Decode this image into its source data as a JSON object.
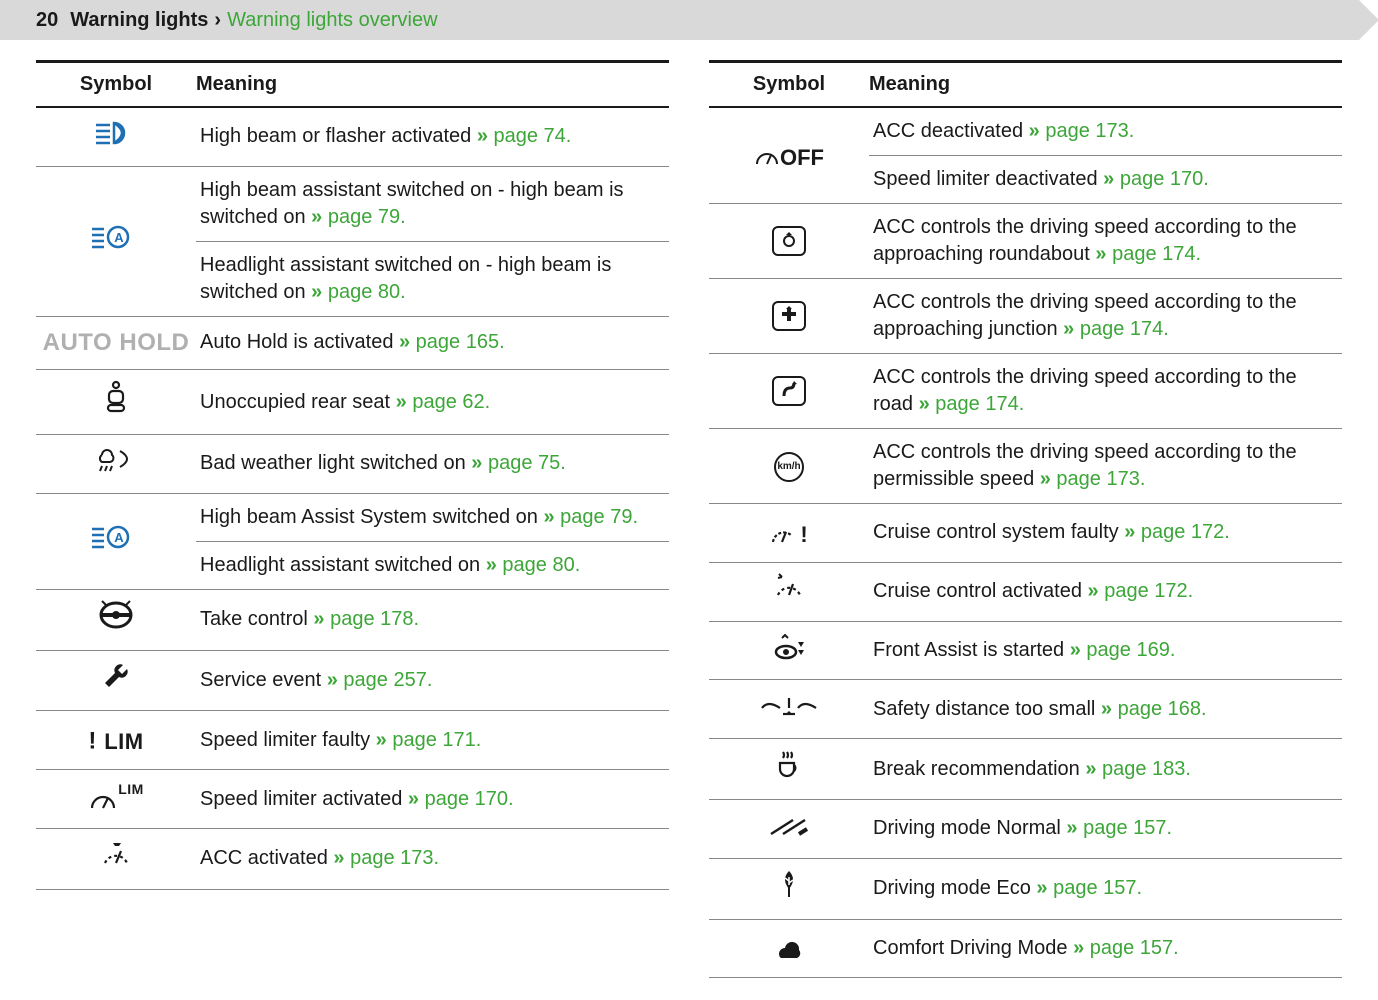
{
  "header": {
    "page_number": "20",
    "crumb_main": "Warning lights",
    "crumb_sep": "›",
    "crumb_sub": "Warning lights overview"
  },
  "columns": {
    "symbol_header": "Symbol",
    "meaning_header": "Meaning"
  },
  "colors": {
    "link": "#3da639",
    "text": "#1a1a1a",
    "header_bg": "#d9d9d9",
    "icon_blue": "#1f6fb5",
    "autohold_grey": "#b0b0b0"
  },
  "left": [
    {
      "icon": "highbeam",
      "texts": [
        {
          "t": "High beam or flasher activated ",
          "page": "page 74."
        }
      ]
    },
    {
      "icon": "highbeam-a",
      "texts": [
        {
          "t": "High beam assistant switched on - high beam is switched on ",
          "page": "page 79."
        },
        {
          "t": "Headlight assistant switched on - high beam is switched on ",
          "page": "page 80."
        }
      ]
    },
    {
      "icon": "autohold",
      "texts": [
        {
          "t": "Auto Hold is activated ",
          "page": "page 165."
        }
      ]
    },
    {
      "icon": "rear-seat",
      "texts": [
        {
          "t": "Unoccupied rear seat ",
          "page": "page 62."
        }
      ]
    },
    {
      "icon": "bad-weather",
      "texts": [
        {
          "t": "Bad weather light switched on ",
          "page": "page 75."
        }
      ]
    },
    {
      "icon": "highbeam-a",
      "texts": [
        {
          "t": "High beam Assist System switched on ",
          "page": "page 79."
        },
        {
          "t": "Headlight assistant switched on ",
          "page": "page 80."
        }
      ]
    },
    {
      "icon": "steering",
      "texts": [
        {
          "t": "Take control ",
          "page": "page 178."
        }
      ]
    },
    {
      "icon": "wrench",
      "texts": [
        {
          "t": "Service event ",
          "page": "page 257."
        }
      ]
    },
    {
      "icon": "lim-fault",
      "texts": [
        {
          "t": "Speed limiter faulty ",
          "page": "page 171."
        }
      ]
    },
    {
      "icon": "lim-on",
      "texts": [
        {
          "t": "Speed limiter activated ",
          "page": "page 170."
        }
      ]
    },
    {
      "icon": "acc-on",
      "texts": [
        {
          "t": "ACC activated ",
          "page": "page 173."
        }
      ]
    }
  ],
  "right": [
    {
      "icon": "gauge-off",
      "texts": [
        {
          "t": "ACC deactivated ",
          "page": "page 173."
        },
        {
          "t": "Speed limiter deactivated ",
          "page": "page 170."
        }
      ]
    },
    {
      "icon": "roundabout-sign",
      "texts": [
        {
          "t": "ACC controls the driving speed according to the approaching roundabout ",
          "page": "page 174."
        }
      ]
    },
    {
      "icon": "junction-sign",
      "texts": [
        {
          "t": "ACC controls the driving speed according to the approaching junction ",
          "page": "page 174."
        }
      ]
    },
    {
      "icon": "curve-sign",
      "texts": [
        {
          "t": "ACC controls the driving speed according to the road ",
          "page": "page 174."
        }
      ]
    },
    {
      "icon": "kmh-sign",
      "texts": [
        {
          "t": "ACC controls the driving speed according to the permissible speed ",
          "page": "page 173."
        }
      ]
    },
    {
      "icon": "cruise-fault",
      "texts": [
        {
          "t": "Cruise control system faulty ",
          "page": "page 172."
        }
      ]
    },
    {
      "icon": "cruise-on",
      "texts": [
        {
          "t": "Cruise control activated ",
          "page": "page 172."
        }
      ]
    },
    {
      "icon": "front-assist",
      "texts": [
        {
          "t": "Front Assist is started ",
          "page": "page 169."
        }
      ]
    },
    {
      "icon": "distance-warn",
      "texts": [
        {
          "t": "Safety distance too small ",
          "page": "page 168."
        }
      ]
    },
    {
      "icon": "coffee",
      "texts": [
        {
          "t": "Break recommendation ",
          "page": "page 183."
        }
      ]
    },
    {
      "icon": "mode-normal",
      "texts": [
        {
          "t": "Driving mode Normal ",
          "page": "page 157."
        }
      ]
    },
    {
      "icon": "mode-eco",
      "texts": [
        {
          "t": "Driving mode Eco ",
          "page": "page 157."
        }
      ]
    },
    {
      "icon": "mode-comfort",
      "texts": [
        {
          "t": "Comfort Driving Mode ",
          "page": "page 157."
        }
      ]
    }
  ]
}
